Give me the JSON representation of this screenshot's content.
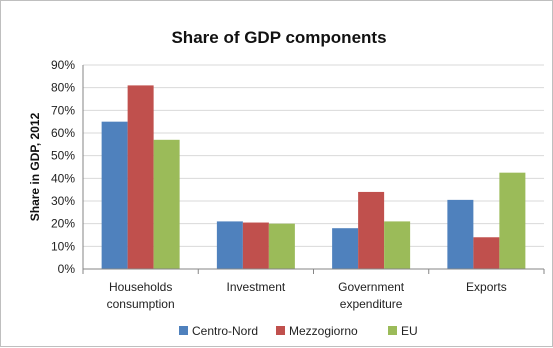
{
  "chart_data": {
    "type": "bar",
    "title": "Share of GDP components",
    "xlabel": "",
    "ylabel": "Share in GDP, 2012",
    "ylim": [
      0,
      90
    ],
    "yticks": [
      "0%",
      "10%",
      "20%",
      "30%",
      "40%",
      "50%",
      "60%",
      "70%",
      "80%",
      "90%"
    ],
    "grid": true,
    "legend_position": "bottom",
    "categories": [
      [
        "Households",
        "consumption"
      ],
      [
        "Investment"
      ],
      [
        "Government",
        "expenditure"
      ],
      [
        "Exports"
      ]
    ],
    "series": [
      {
        "name": "Centro-Nord",
        "color": "#4f81bd",
        "values": [
          65,
          21,
          18,
          30.5
        ]
      },
      {
        "name": "Mezzogiorno",
        "color": "#c0504d",
        "values": [
          81,
          20.5,
          34,
          14
        ]
      },
      {
        "name": "EU",
        "color": "#9bbb59",
        "values": [
          57,
          20,
          21,
          42.5
        ]
      }
    ]
  }
}
